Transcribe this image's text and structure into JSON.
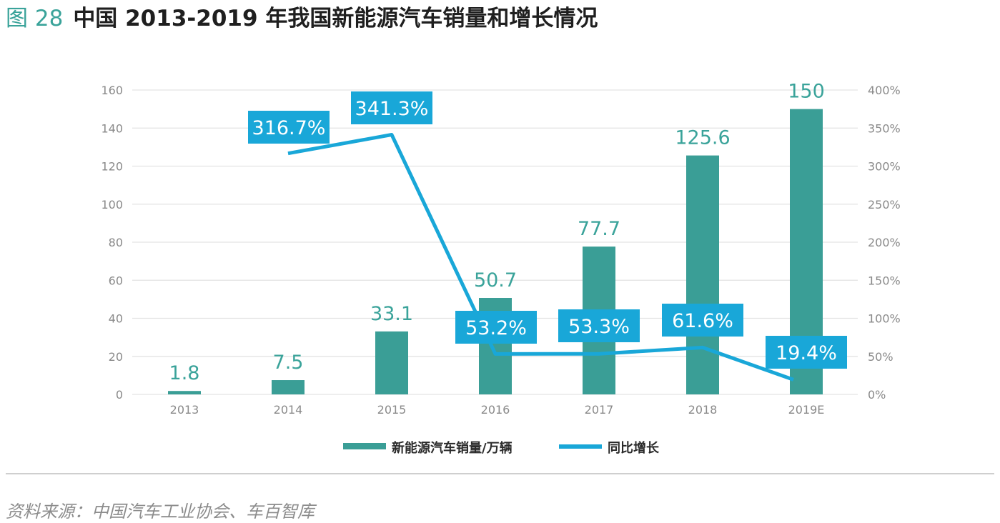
{
  "title": {
    "fig_label": "图 28",
    "text": "中国 2013-2019 年我国新能源汽车销量和增长情况"
  },
  "source": "资料来源：中国汽车工业协会、车百智库",
  "colors": {
    "bar": "#3a9e96",
    "line": "#19a7d8",
    "bar_label": "#3aa39a",
    "axis_text": "#8a8a8a",
    "grid": "#e3e3e3"
  },
  "chart_data": {
    "type": "bar+line",
    "categories": [
      "2013",
      "2014",
      "2015",
      "2016",
      "2017",
      "2018",
      "2019E"
    ],
    "series": [
      {
        "name": "新能源汽车销量/万辆",
        "type": "bar",
        "axis": "left",
        "values": [
          1.8,
          7.5,
          33.1,
          50.7,
          77.7,
          125.6,
          150
        ],
        "labels": [
          "1.8",
          "7.5",
          "33.1",
          "50.7",
          "77.7",
          "125.6",
          "150"
        ]
      },
      {
        "name": "同比增长",
        "type": "line",
        "axis": "right",
        "values": [
          null,
          316.7,
          341.3,
          53.2,
          53.3,
          61.6,
          19.4
        ],
        "labels": [
          "",
          "316.7%",
          "341.3%",
          "53.2%",
          "53.3%",
          "61.6%",
          "19.4%"
        ]
      }
    ],
    "y_left": {
      "min": 0,
      "max": 160,
      "ticks": [
        "0",
        "20",
        "40",
        "60",
        "80",
        "100",
        "120",
        "140",
        "160"
      ]
    },
    "y_right": {
      "min": 0,
      "max": 400,
      "ticks": [
        "0%",
        "50%",
        "100%",
        "150%",
        "200%",
        "250%",
        "300%",
        "350%",
        "400%"
      ]
    },
    "grid": true,
    "legend_position": "bottom"
  }
}
